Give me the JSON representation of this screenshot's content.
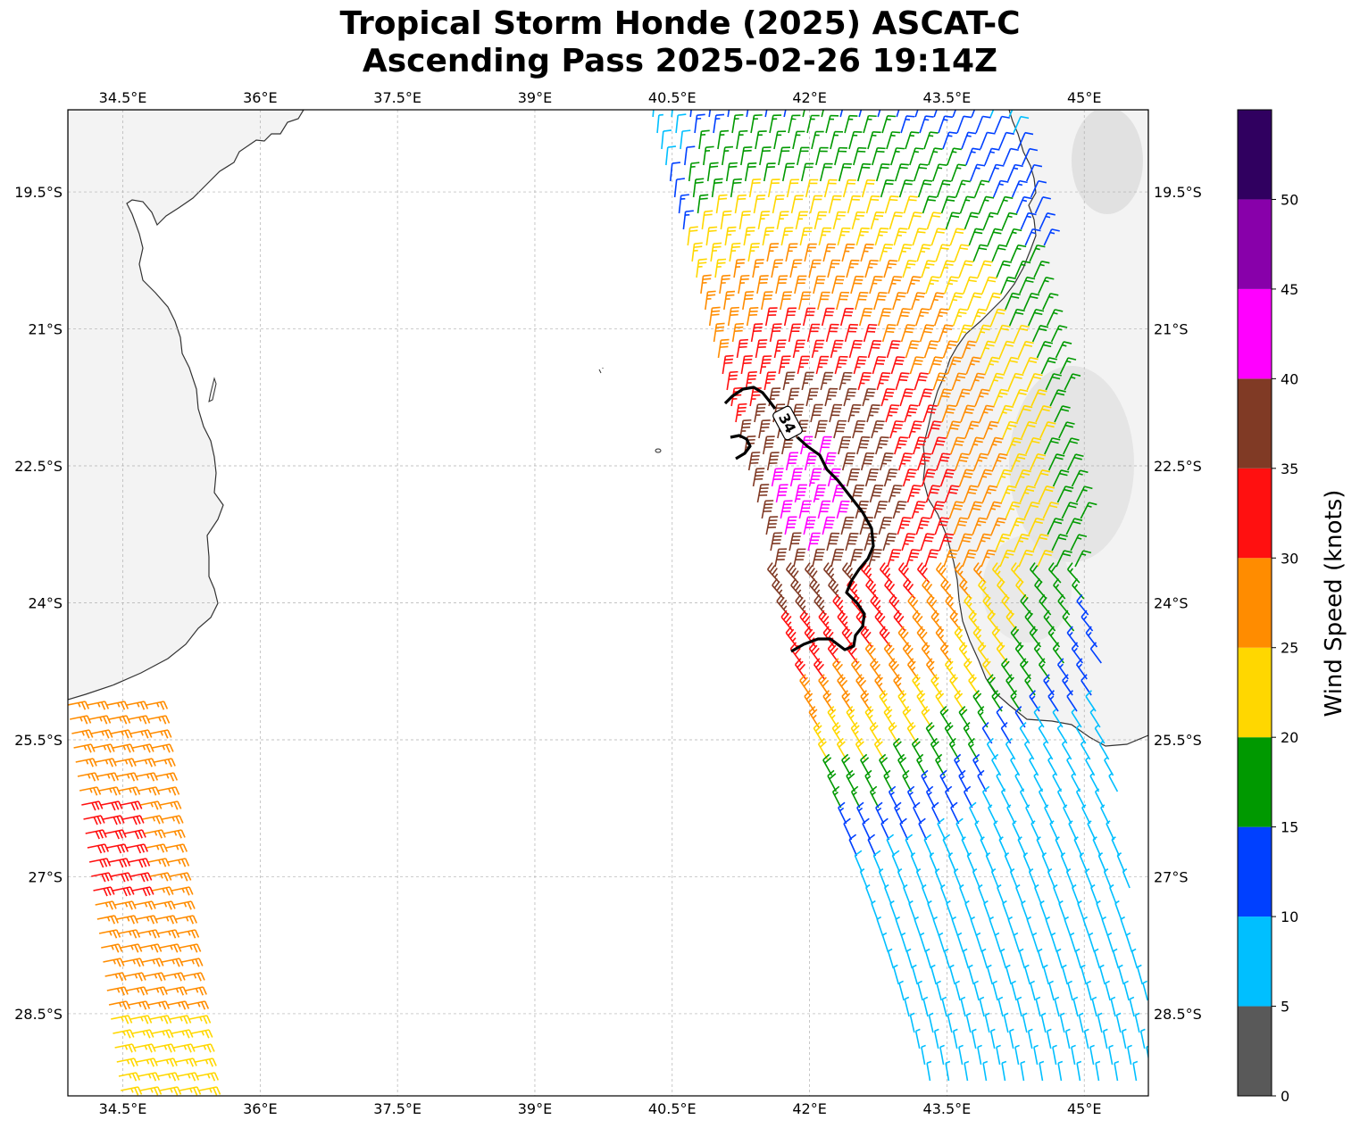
{
  "title": {
    "line1": "Tropical Storm Honde (2025) ASCAT-C",
    "line2": "Ascending Pass 2025-02-26 19:14Z"
  },
  "map": {
    "lon_ticks": [
      "34.5°E",
      "36°E",
      "37.5°E",
      "39°E",
      "40.5°E",
      "42°E",
      "43.5°E",
      "45°E"
    ],
    "lat_ticks": [
      "19.5°S",
      "21°S",
      "22.5°S",
      "24°S",
      "25.5°S",
      "27°S",
      "28.5°S"
    ],
    "lon_values": [
      34.5,
      36,
      37.5,
      39,
      40.5,
      42,
      43.5,
      45
    ],
    "lat_values": [
      -19.5,
      -21,
      -22.5,
      -24,
      -25.5,
      -27,
      -28.5
    ],
    "extent": {
      "lon_min": 33.9,
      "lon_max": 45.7,
      "lat_min": -29.4,
      "lat_max": -18.6
    },
    "contour_label": "34",
    "land_color": "#f3f3f3",
    "ocean_color": "#ffffff",
    "coast_color": "#333333"
  },
  "colorbar": {
    "label": "Wind Speed (knots)",
    "ticks": [
      "0",
      "5",
      "10",
      "15",
      "20",
      "25",
      "30",
      "35",
      "40",
      "45",
      "50"
    ],
    "bins": [
      {
        "min": 0,
        "max": 5,
        "color": "#595959"
      },
      {
        "min": 5,
        "max": 10,
        "color": "#00bfff"
      },
      {
        "min": 10,
        "max": 15,
        "color": "#0040ff"
      },
      {
        "min": 15,
        "max": 20,
        "color": "#009900"
      },
      {
        "min": 20,
        "max": 25,
        "color": "#ffd700"
      },
      {
        "min": 25,
        "max": 30,
        "color": "#ff8c00"
      },
      {
        "min": 30,
        "max": 35,
        "color": "#ff1010"
      },
      {
        "min": 35,
        "max": 40,
        "color": "#803a25"
      },
      {
        "min": 40,
        "max": 45,
        "color": "#ff00ff"
      },
      {
        "min": 45,
        "max": 50,
        "color": "#8800aa"
      },
      {
        "min": 50,
        "max": 55,
        "color": "#300060"
      }
    ]
  }
}
